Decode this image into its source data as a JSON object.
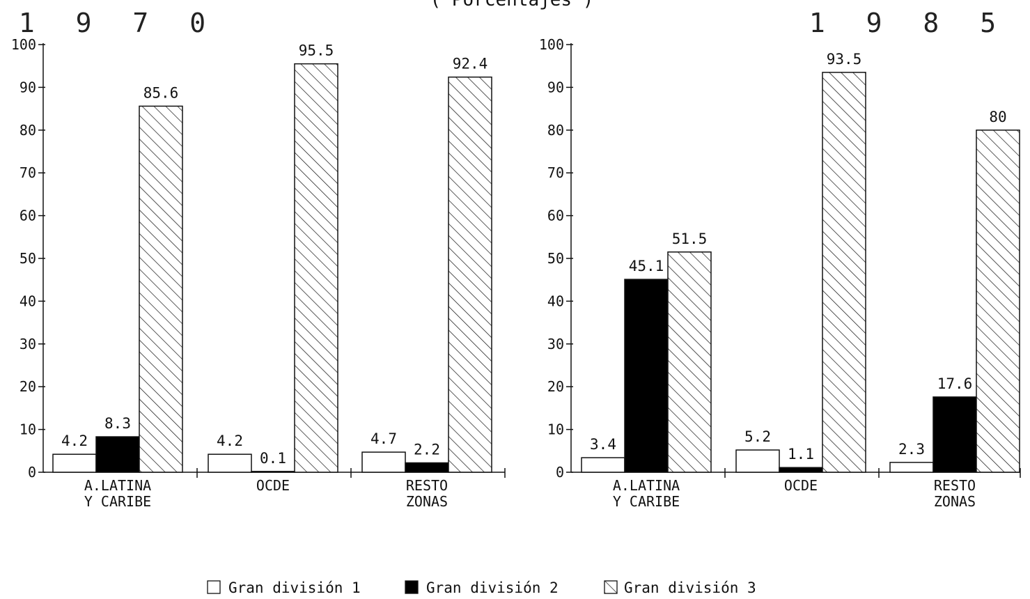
{
  "subtitle": "( Porcentajes )",
  "legend": [
    {
      "label": "Gran división 1",
      "fill": "#ffffff"
    },
    {
      "label": "Gran división 2",
      "fill": "#000000"
    },
    {
      "label": "Gran división 3",
      "fill": "hatch"
    }
  ],
  "colors": {
    "ink": "#111111",
    "paper": "#ffffff"
  },
  "chart_data": [
    {
      "type": "bar",
      "title": "1 9 7 0",
      "categories": [
        "A.LATINA\nY CARIBE",
        "OCDE",
        "RESTO\nZONAS"
      ],
      "series": [
        {
          "name": "Gran división 1",
          "values": [
            4.2,
            4.2,
            4.7
          ],
          "labels": [
            "4.2",
            "4.2",
            "4.7"
          ]
        },
        {
          "name": "Gran división 2",
          "values": [
            8.3,
            0.1,
            2.2
          ],
          "labels": [
            "8.3",
            "0.1",
            "2.2"
          ]
        },
        {
          "name": "Gran división 3",
          "values": [
            85.6,
            95.5,
            92.4
          ],
          "labels": [
            "85.6",
            "95.5",
            "92.4"
          ]
        }
      ],
      "yticks": [
        0,
        10,
        20,
        30,
        40,
        50,
        60,
        70,
        80,
        90,
        100
      ],
      "ylim": [
        0,
        100
      ],
      "grid": false
    },
    {
      "type": "bar",
      "title": "1 9 8 5",
      "categories": [
        "A.LATINA\nY CARIBE",
        "OCDE",
        "RESTO\nZONAS"
      ],
      "series": [
        {
          "name": "Gran división 1",
          "values": [
            3.4,
            5.2,
            2.3
          ],
          "labels": [
            "3.4",
            "5.2",
            "2.3"
          ]
        },
        {
          "name": "Gran división 2",
          "values": [
            45.1,
            1.1,
            17.6
          ],
          "labels": [
            "45.1",
            "1.1",
            "17.6"
          ]
        },
        {
          "name": "Gran división 3",
          "values": [
            51.5,
            93.5,
            80
          ],
          "labels": [
            "51.5",
            "93.5",
            "80"
          ]
        }
      ],
      "yticks": [
        0,
        10,
        20,
        30,
        40,
        50,
        60,
        70,
        80,
        90,
        100
      ],
      "ylim": [
        0,
        100
      ],
      "grid": false
    }
  ]
}
